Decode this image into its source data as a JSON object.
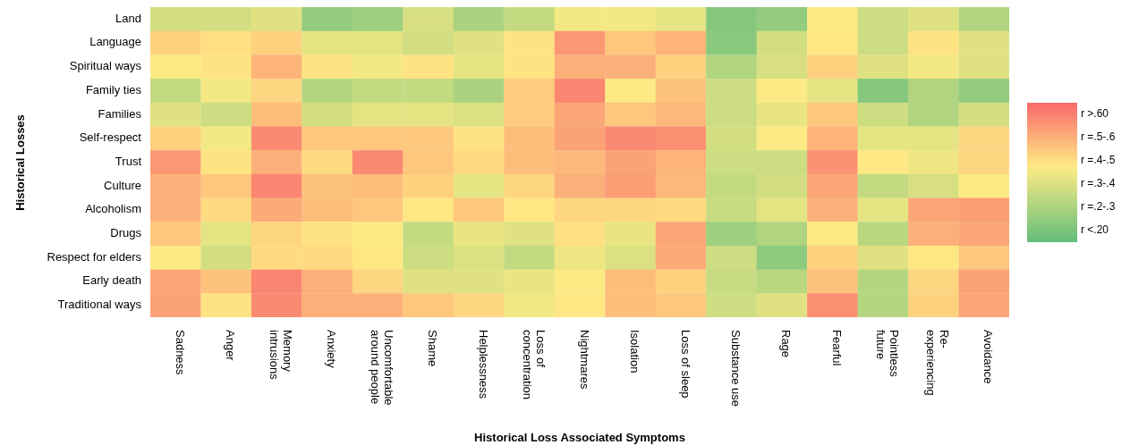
{
  "chart_data": {
    "type": "heatmap",
    "xlabel": "Historical Loss Associated Symptoms",
    "ylabel": "Historical Losses",
    "categories": [
      "Sadness",
      "Anger",
      "Memory intrusions",
      "Anxiety",
      "Uncomfortable around people",
      "Shame",
      "Helplessness",
      "Loss of concentration",
      "Nightmares",
      "Isolation",
      "Loss of sleep",
      "Substance use",
      "Rage",
      "Fearful",
      "Pointless future",
      "Re-experiencing",
      "Avoidance"
    ],
    "y_categories": [
      "Land",
      "Language",
      "Spiritual ways",
      "Family ties",
      "Families",
      "Self-respect",
      "Trust",
      "Culture",
      "Alcoholism",
      "Drugs",
      "Respect for elders",
      "Early death",
      "Traditional ways"
    ],
    "cells": [
      [
        0.33,
        0.33,
        0.36,
        0.2,
        0.22,
        0.34,
        0.25,
        0.3,
        0.4,
        0.4,
        0.37,
        0.17,
        0.2,
        0.42,
        0.32,
        0.36,
        0.26
      ],
      [
        0.48,
        0.45,
        0.48,
        0.37,
        0.37,
        0.33,
        0.36,
        0.44,
        0.6,
        0.5,
        0.54,
        0.18,
        0.33,
        0.43,
        0.32,
        0.44,
        0.36
      ],
      [
        0.42,
        0.44,
        0.54,
        0.44,
        0.4,
        0.44,
        0.37,
        0.44,
        0.55,
        0.55,
        0.48,
        0.26,
        0.34,
        0.48,
        0.36,
        0.4,
        0.36
      ],
      [
        0.3,
        0.4,
        0.47,
        0.27,
        0.3,
        0.3,
        0.25,
        0.49,
        0.64,
        0.42,
        0.51,
        0.32,
        0.42,
        0.37,
        0.17,
        0.26,
        0.2
      ],
      [
        0.36,
        0.32,
        0.52,
        0.33,
        0.37,
        0.37,
        0.35,
        0.49,
        0.57,
        0.5,
        0.53,
        0.32,
        0.38,
        0.5,
        0.32,
        0.26,
        0.33
      ],
      [
        0.48,
        0.4,
        0.63,
        0.5,
        0.5,
        0.5,
        0.44,
        0.52,
        0.58,
        0.63,
        0.62,
        0.33,
        0.42,
        0.54,
        0.37,
        0.37,
        0.47
      ],
      [
        0.6,
        0.44,
        0.55,
        0.46,
        0.63,
        0.5,
        0.46,
        0.52,
        0.53,
        0.58,
        0.54,
        0.32,
        0.32,
        0.61,
        0.43,
        0.39,
        0.47
      ],
      [
        0.55,
        0.5,
        0.64,
        0.51,
        0.52,
        0.48,
        0.37,
        0.47,
        0.55,
        0.59,
        0.53,
        0.3,
        0.33,
        0.57,
        0.3,
        0.34,
        0.42
      ],
      [
        0.55,
        0.46,
        0.56,
        0.52,
        0.5,
        0.43,
        0.5,
        0.43,
        0.47,
        0.47,
        0.46,
        0.31,
        0.37,
        0.55,
        0.37,
        0.57,
        0.59
      ],
      [
        0.5,
        0.37,
        0.47,
        0.44,
        0.42,
        0.3,
        0.38,
        0.36,
        0.45,
        0.38,
        0.57,
        0.22,
        0.26,
        0.42,
        0.28,
        0.55,
        0.57
      ],
      [
        0.42,
        0.33,
        0.46,
        0.46,
        0.43,
        0.32,
        0.35,
        0.3,
        0.39,
        0.35,
        0.56,
        0.32,
        0.19,
        0.48,
        0.36,
        0.43,
        0.5
      ],
      [
        0.57,
        0.51,
        0.64,
        0.55,
        0.47,
        0.36,
        0.36,
        0.38,
        0.42,
        0.52,
        0.48,
        0.31,
        0.28,
        0.51,
        0.27,
        0.47,
        0.58
      ],
      [
        0.58,
        0.44,
        0.63,
        0.55,
        0.55,
        0.5,
        0.47,
        0.4,
        0.43,
        0.52,
        0.5,
        0.32,
        0.36,
        0.62,
        0.27,
        0.48,
        0.57
      ]
    ],
    "clim": [
      0.1,
      0.7
    ],
    "cticks": [
      {
        "value": 0.65,
        "label": "r >.60"
      },
      {
        "value": 0.55,
        "label": "r =.5-.6"
      },
      {
        "value": 0.45,
        "label": "r =.4-.5"
      },
      {
        "value": 0.35,
        "label": "r =.3-.4"
      },
      {
        "value": 0.25,
        "label": "r =.2-.3"
      },
      {
        "value": 0.15,
        "label": "r <.20"
      }
    ]
  }
}
